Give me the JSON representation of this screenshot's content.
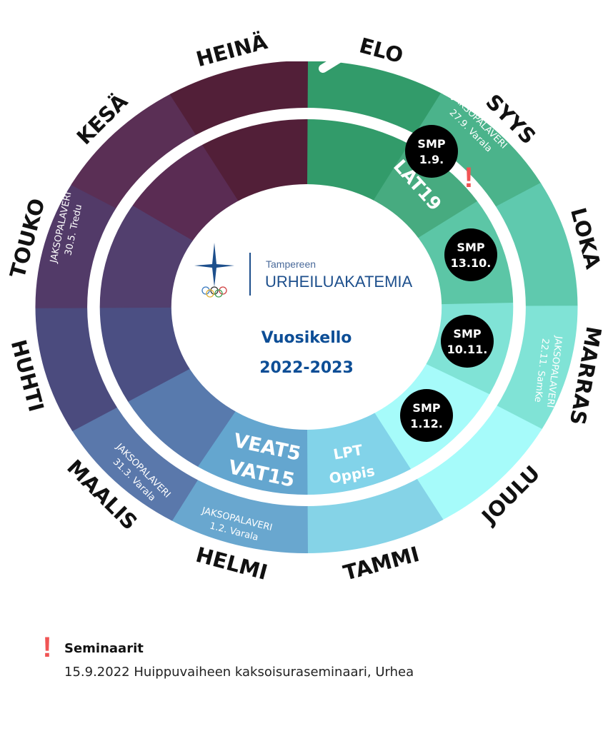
{
  "months": [
    {
      "name": "ELO",
      "color": "#329b6a"
    },
    {
      "name": "SYYS",
      "color": "#4bb38b"
    },
    {
      "name": "LOKA",
      "color": "#5fc9ae"
    },
    {
      "name": "MARRAS",
      "color": "#80e3d6"
    },
    {
      "name": "JOULU",
      "color": "#a6fbfa"
    },
    {
      "name": "TAMMI",
      "color": "#85d3e7"
    },
    {
      "name": "HELMI",
      "color": "#69a7cf"
    },
    {
      "name": "MAALIS",
      "color": "#5a78ab"
    },
    {
      "name": "HUHTI",
      "color": "#4b4b7e"
    },
    {
      "name": "TOUKO",
      "color": "#523a68"
    },
    {
      "name": "KESÄ",
      "color": "#5a2f55"
    },
    {
      "name": "HEINÄ",
      "color": "#521f38"
    }
  ],
  "inner_colors": [
    "#329b6a",
    "#47ab80",
    "#5cc6a6",
    "#80e3d6",
    "#a6fbfa",
    "#82d3e9",
    "#64a6cf",
    "#587aad",
    "#4b4f83",
    "#523f6e",
    "#5a2c53",
    "#521f38"
  ],
  "meetings": {
    "syys": {
      "line1": "JAKSOPALAVERI",
      "line2": "27.9. Varala"
    },
    "marras": {
      "line1": "JAKSOPALAVERI",
      "line2": "22.11. SamKe"
    },
    "helmi": {
      "line1": "JAKSOPALAVERI",
      "line2": "1.2. Varala"
    },
    "maalis": {
      "line1": "JAKSOPALAVERI",
      "line2": "31.3. Varala"
    },
    "touko": {
      "line1": "JAKSOPALAVERI",
      "line2": "30.5. Tredu"
    }
  },
  "inner_labels": {
    "lat": "LAT19",
    "veat": "VEAT5",
    "vat": "VAT15",
    "lpt": "LPT",
    "oppis": "Oppis"
  },
  "smp": [
    {
      "title": "SMP",
      "date": "1.9."
    },
    {
      "title": "SMP",
      "date": "13.10."
    },
    {
      "title": "SMP",
      "date": "10.11."
    },
    {
      "title": "SMP",
      "date": "1.12."
    }
  ],
  "logo": {
    "line1": "Tampereen",
    "line2": "URHEILUAKATEMIA",
    "color": "#1d4f8c"
  },
  "center": {
    "title": "Vuosikello",
    "years": "2022-2023"
  },
  "seminar_mark": "!",
  "seminar_color": "#f05454",
  "legend": {
    "mark": "!",
    "title": "Seminaarit",
    "items": [
      "15.9.2022 Huippuvaiheen kaksoisuraseminaari, Urhea"
    ]
  }
}
